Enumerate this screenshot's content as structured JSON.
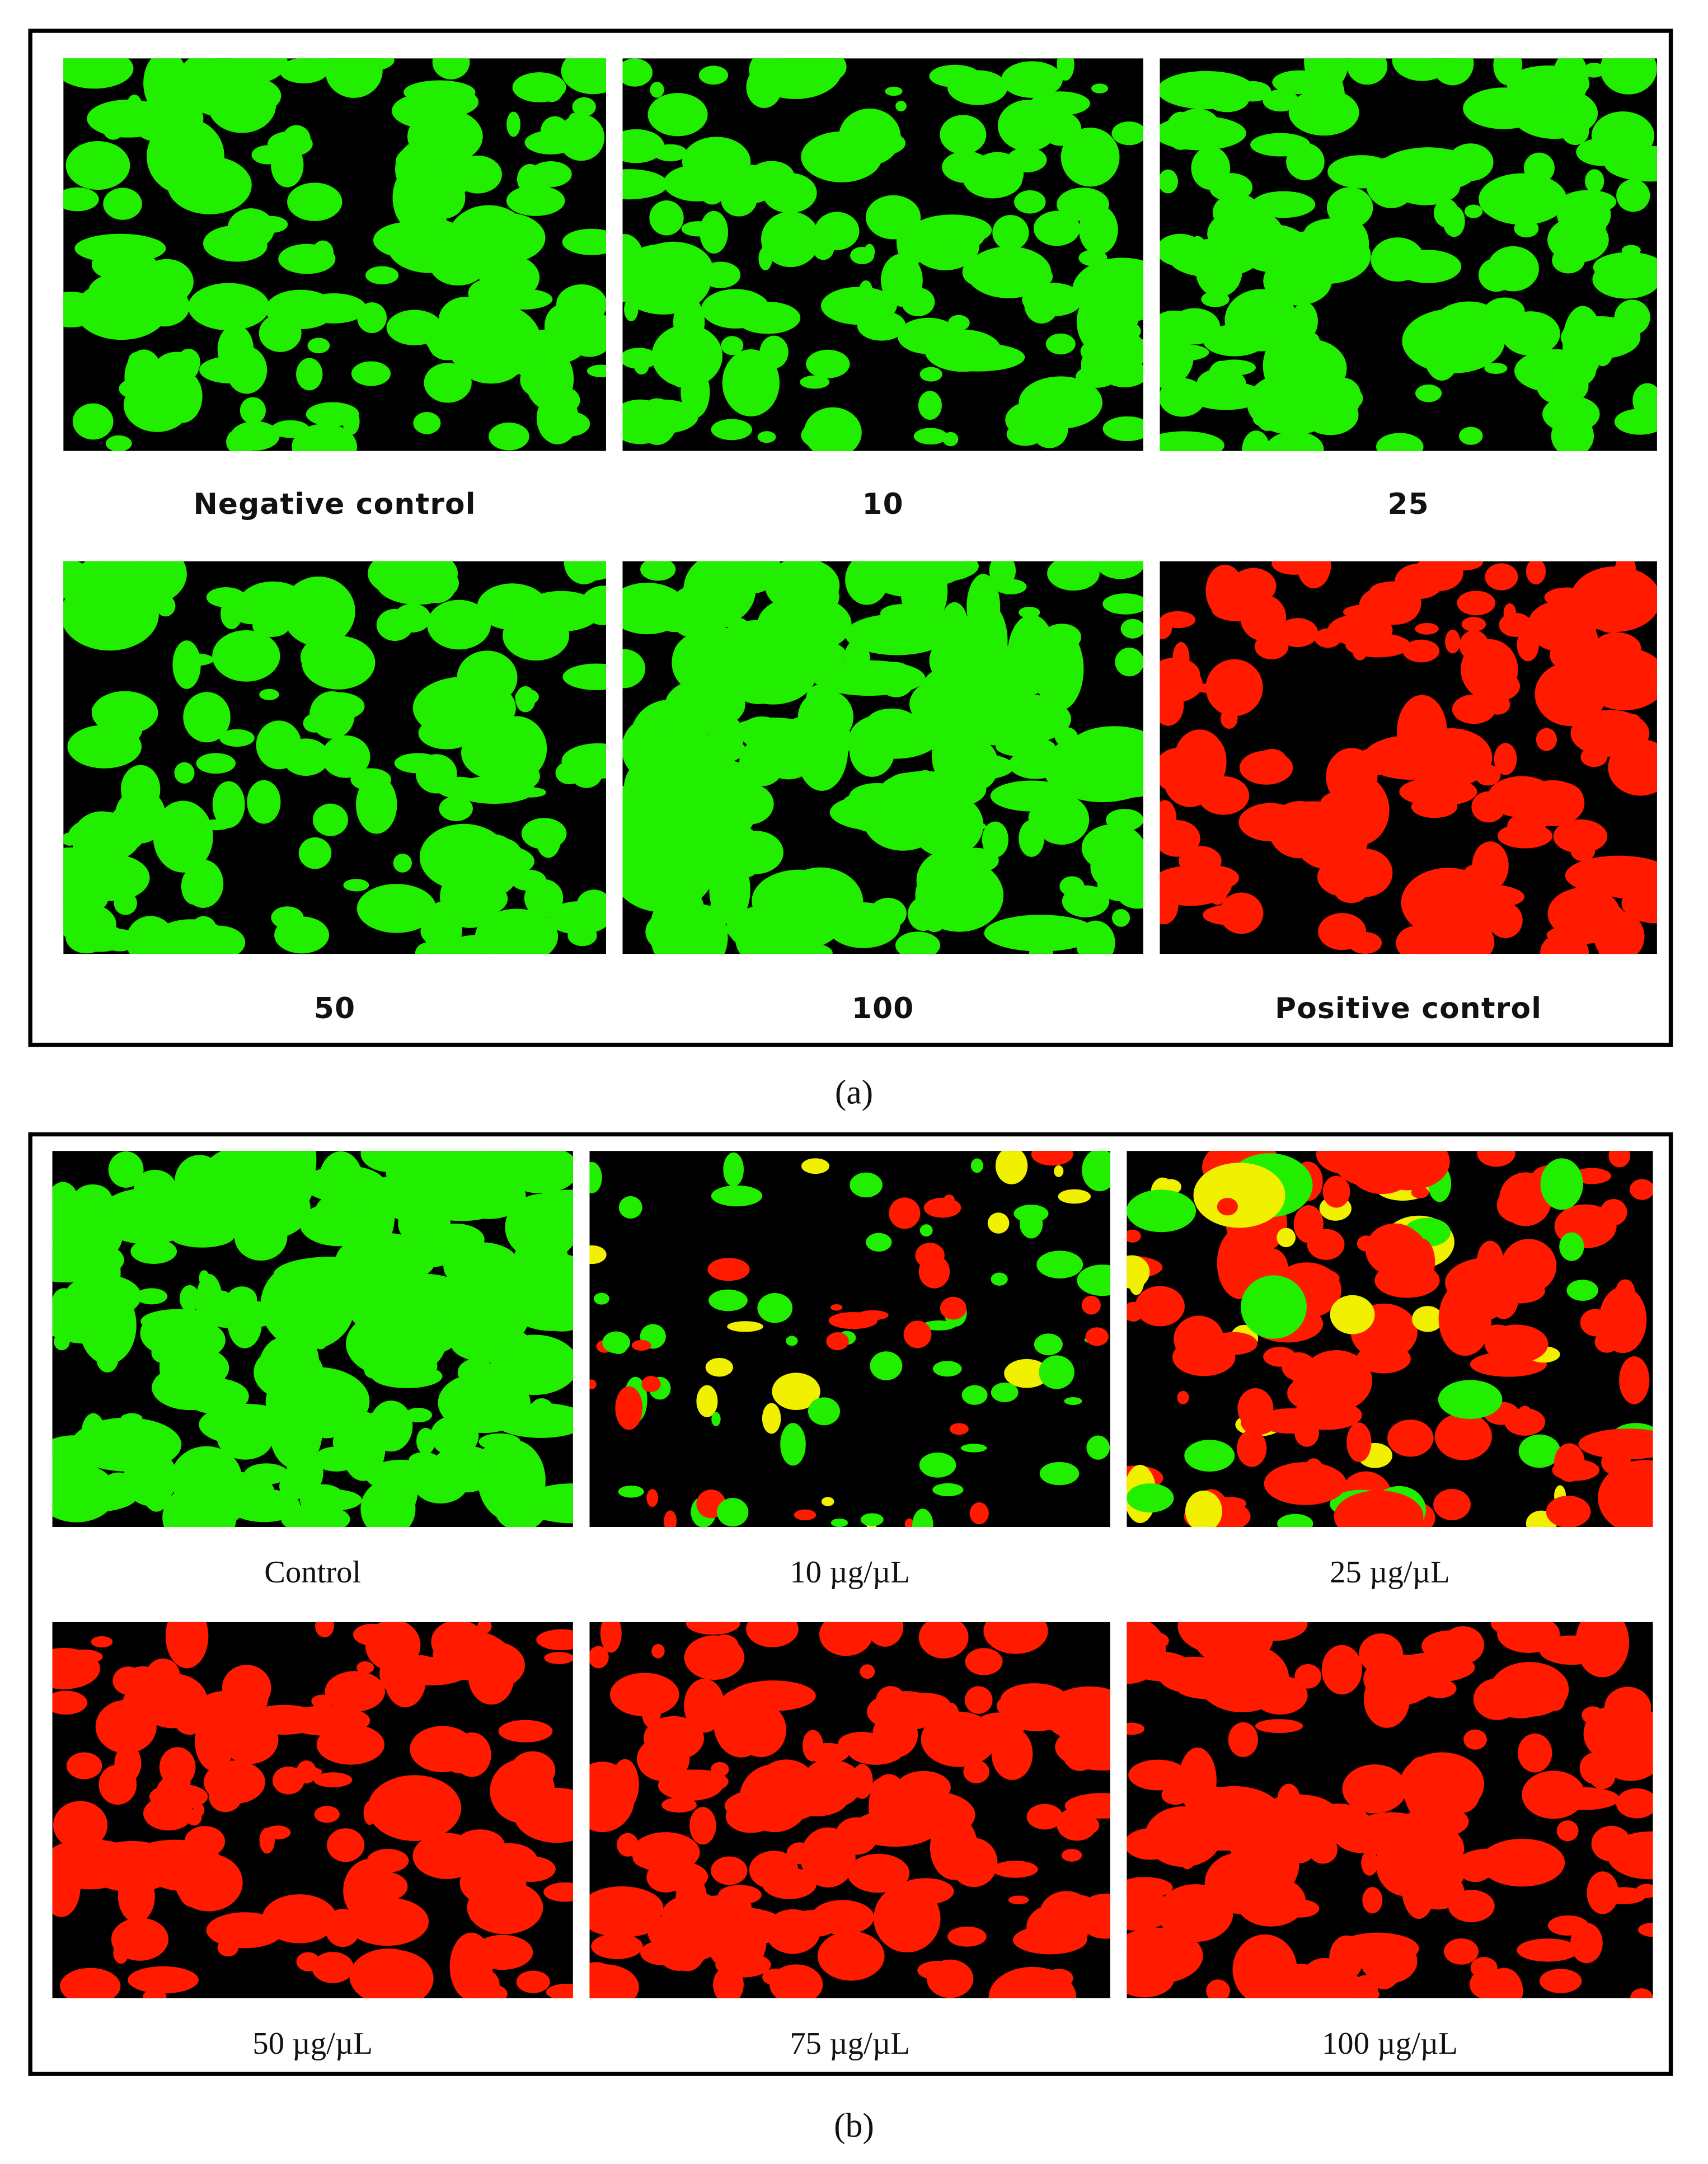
{
  "figure": {
    "panels": [
      {
        "caption": "(a)",
        "images": [
          {
            "label": "Negative control"
          },
          {
            "label": "10"
          },
          {
            "label": "25"
          },
          {
            "label": "50"
          },
          {
            "label": "100"
          },
          {
            "label": "Positive control"
          }
        ]
      },
      {
        "caption": "(b)",
        "images": [
          {
            "label": "Control"
          },
          {
            "label": "10 µg/µL"
          },
          {
            "label": "25 µg/µL"
          },
          {
            "label": "50 µg/µL"
          },
          {
            "label": "75 µg/µL"
          },
          {
            "label": "100 µg/µL"
          }
        ]
      }
    ]
  }
}
